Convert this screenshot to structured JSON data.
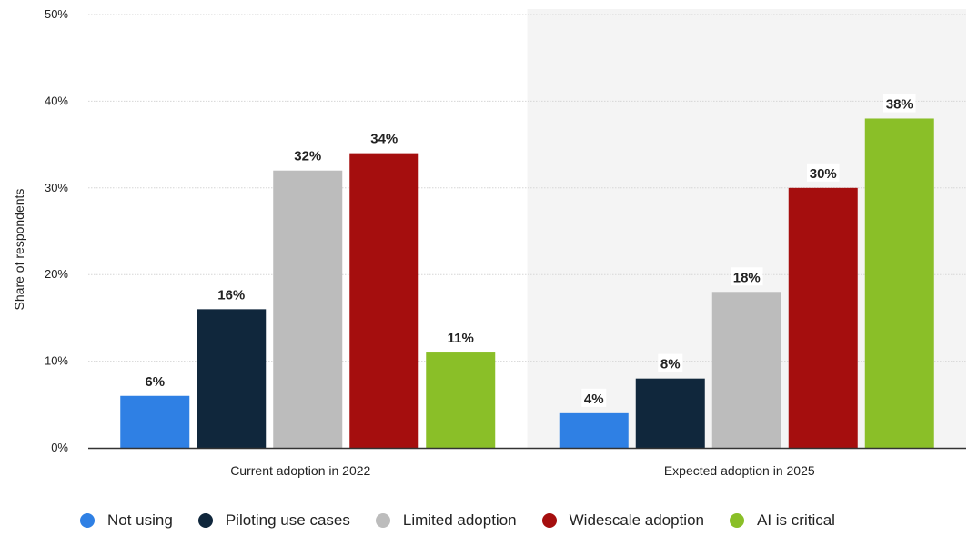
{
  "chart_data": {
    "type": "bar",
    "categories": [
      "Current adoption in 2022",
      "Expected adoption in 2025"
    ],
    "series": [
      {
        "name": "Not using",
        "color": "#2f80e4",
        "values": [
          6,
          4
        ],
        "labels": [
          "6%",
          "4%"
        ]
      },
      {
        "name": "Piloting use cases",
        "color": "#10273c",
        "values": [
          16,
          8
        ],
        "labels": [
          "16%",
          "8%"
        ]
      },
      {
        "name": "Limited adoption",
        "color": "#bcbcbc",
        "values": [
          32,
          18
        ],
        "labels": [
          "32%",
          "18%"
        ]
      },
      {
        "name": "Widescale adoption",
        "color": "#a50e0e",
        "values": [
          34,
          30
        ],
        "labels": [
          "34%",
          "30%"
        ]
      },
      {
        "name": "AI is critical",
        "color": "#8abf28",
        "values": [
          11,
          38
        ],
        "labels": [
          "11%",
          "38%"
        ]
      }
    ],
    "ylabel": "Share of respondents",
    "xlabel": "",
    "ylim": [
      0,
      50
    ],
    "yticks": [
      0,
      10,
      20,
      30,
      40,
      50
    ],
    "ytick_labels": [
      "0%",
      "10%",
      "20%",
      "30%",
      "40%",
      "50%"
    ],
    "grid": true,
    "shaded_category": "Expected adoption in 2025",
    "legend_position": "bottom"
  }
}
